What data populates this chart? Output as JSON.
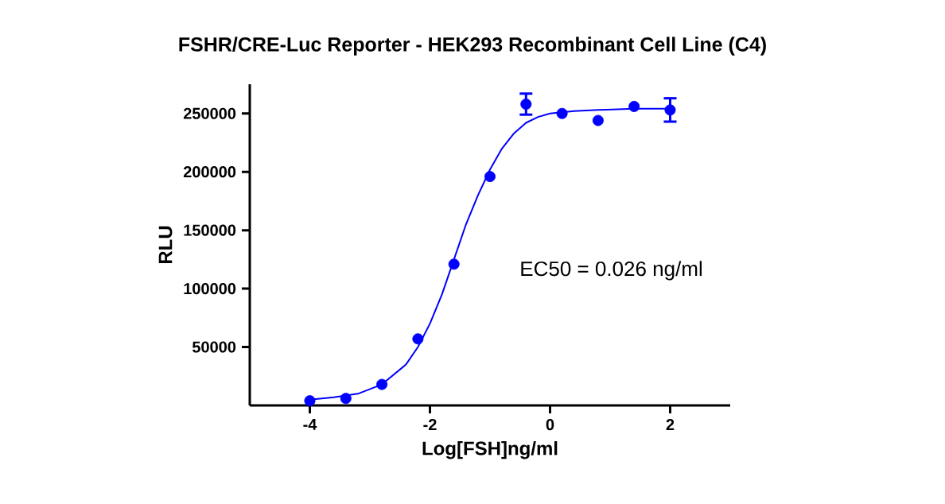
{
  "chart_data": {
    "type": "scatter",
    "title": "FSHR/CRE-Luc Reporter - HEK293 Recombinant Cell Line (C4)",
    "xlabel": "Log[FSH]ng/ml",
    "ylabel": "RLU",
    "annotations": [
      "EC50 = 0.026 ng/ml"
    ],
    "xlim": [
      -5,
      3
    ],
    "ylim": [
      0,
      275000
    ],
    "xticks": [
      -4,
      -2,
      0,
      2
    ],
    "yticks": [
      50000,
      100000,
      150000,
      200000,
      250000
    ],
    "grid": false,
    "marker": "circle",
    "series": [
      {
        "color": "#0000ff",
        "x": [
          -4,
          -3.4,
          -2.8,
          -2.2,
          -1.6,
          -1.0,
          -0.4,
          0.2,
          0.8,
          1.4,
          2.0
        ],
        "values": [
          4000,
          6000,
          18000,
          57000,
          121000,
          196000,
          258000,
          250000,
          244000,
          256000,
          253000
        ],
        "errors": [
          null,
          null,
          null,
          null,
          null,
          null,
          9000,
          null,
          null,
          null,
          10000
        ]
      },
      {
        "type": "line",
        "color": "#0000ff",
        "marker": "none",
        "x": [
          -4,
          -3.6,
          -3.2,
          -2.8,
          -2.4,
          -2.2,
          -2.0,
          -1.8,
          -1.6,
          -1.4,
          -1.2,
          -1.0,
          -0.8,
          -0.6,
          -0.4,
          -0.2,
          0,
          0.4,
          0.8,
          1.4,
          2.0
        ],
        "values": [
          5000,
          7000,
          10000,
          18000,
          35000,
          50000,
          70000,
          95000,
          125000,
          155000,
          180000,
          202000,
          220000,
          233000,
          242000,
          247000,
          250000,
          252000,
          253000,
          254000,
          254000
        ]
      }
    ]
  }
}
